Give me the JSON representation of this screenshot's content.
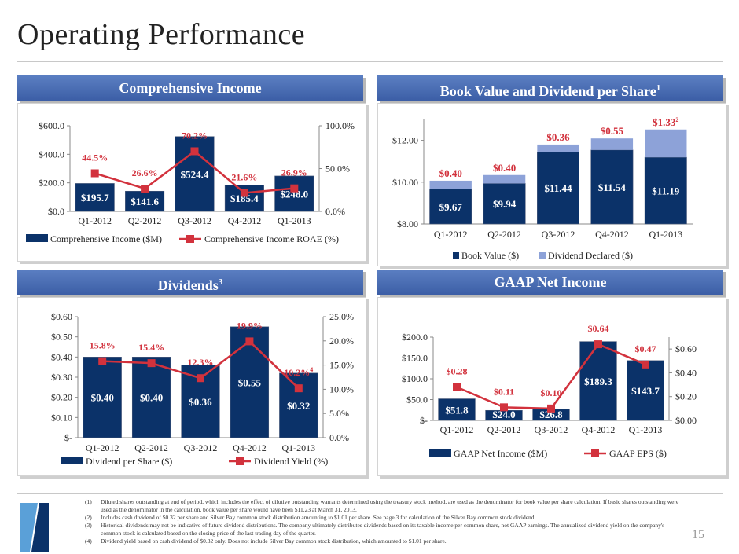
{
  "page": {
    "title": "Operating Performance",
    "page_number": "15"
  },
  "colors": {
    "navy": "#0b3269",
    "light_blue": "#8da2d8",
    "red": "#d2323d",
    "header_blue": "#4a6db3"
  },
  "panels": {
    "comprehensive": {
      "title": "Comprehensive Income"
    },
    "book_value": {
      "title": "Book Value and Dividend per Share",
      "title_sup": "1"
    },
    "dividends": {
      "title": "Dividends",
      "title_sup": "3"
    },
    "gaap": {
      "title": "GAAP Net Income"
    }
  },
  "chart_data": [
    {
      "id": "comprehensive",
      "type": "bar+line",
      "categories": [
        "Q1-2012",
        "Q2-2012",
        "Q3-2012",
        "Q4-2012",
        "Q1-2013"
      ],
      "series": [
        {
          "name": "Comprehensive Income ($M)",
          "kind": "bar",
          "axis": "left",
          "values": [
            195.7,
            141.6,
            524.4,
            185.4,
            248.0
          ],
          "labels": [
            "$195.7",
            "$141.6",
            "$524.4",
            "$185.4",
            "$248.0"
          ]
        },
        {
          "name": "Comprehensive Income ROAE (%)",
          "kind": "line",
          "axis": "right",
          "values": [
            44.5,
            26.6,
            70.2,
            21.6,
            26.9
          ],
          "labels": [
            "44.5%",
            "26.6%",
            "70.2%",
            "21.6%",
            "26.9%"
          ]
        }
      ],
      "left_axis": {
        "range": [
          0,
          600
        ],
        "ticks": [
          0,
          200,
          400,
          600
        ],
        "tick_labels": [
          "$0.0",
          "$200.0",
          "$400.0",
          "$600.0"
        ]
      },
      "right_axis": {
        "range": [
          0,
          100
        ],
        "ticks": [
          0,
          50,
          100
        ],
        "tick_labels": [
          "0.0%",
          "50.0%",
          "100.0%"
        ]
      },
      "grid": false,
      "legend": "bottom"
    },
    {
      "id": "book_value",
      "type": "stacked-bar",
      "categories": [
        "Q1-2012",
        "Q2-2012",
        "Q3-2012",
        "Q4-2012",
        "Q1-2013"
      ],
      "series": [
        {
          "name": "Book Value ($)",
          "kind": "bar",
          "axis": "left",
          "values": [
            9.67,
            9.94,
            11.44,
            11.54,
            11.19
          ],
          "labels": [
            "$9.67",
            "$9.94",
            "$11.44",
            "$11.54",
            "$11.19"
          ]
        },
        {
          "name": "Dividend Declared ($)",
          "kind": "stack",
          "axis": "left",
          "values": [
            0.4,
            0.4,
            0.36,
            0.55,
            1.33
          ],
          "labels": [
            "$0.40",
            "$0.40",
            "$0.36",
            "$0.55",
            "$1.33"
          ],
          "label_superscripts": [
            "",
            "",
            "",
            "",
            "2"
          ]
        }
      ],
      "left_axis": {
        "range": [
          8,
          13
        ],
        "ticks": [
          8,
          10,
          12
        ],
        "tick_labels": [
          "$8.00",
          "$10.00",
          "$12.00"
        ]
      },
      "grid": false,
      "legend": "bottom"
    },
    {
      "id": "dividends",
      "type": "bar+line",
      "categories": [
        "Q1-2012",
        "Q2-2012",
        "Q3-2012",
        "Q4-2012",
        "Q1-2013"
      ],
      "series": [
        {
          "name": "Dividend per Share ($)",
          "kind": "bar",
          "axis": "left",
          "values": [
            0.4,
            0.4,
            0.36,
            0.55,
            0.32
          ],
          "labels": [
            "$0.40",
            "$0.40",
            "$0.36",
            "$0.55",
            "$0.32"
          ]
        },
        {
          "name": "Dividend Yield (%)",
          "kind": "line",
          "axis": "right",
          "values": [
            15.8,
            15.4,
            12.3,
            19.9,
            10.2
          ],
          "labels": [
            "15.8%",
            "15.4%",
            "12.3%",
            "19.9%",
            "10.2%"
          ],
          "label_superscripts": [
            "",
            "",
            "",
            "",
            "4"
          ]
        }
      ],
      "left_axis": {
        "range": [
          0,
          0.6
        ],
        "ticks": [
          0,
          0.1,
          0.2,
          0.3,
          0.4,
          0.5,
          0.6
        ],
        "tick_labels": [
          "$-",
          "$0.10",
          "$0.20",
          "$0.30",
          "$0.40",
          "$0.50",
          "$0.60"
        ]
      },
      "right_axis": {
        "range": [
          0,
          25
        ],
        "ticks": [
          0,
          5,
          10,
          15,
          20,
          25
        ],
        "tick_labels": [
          "0.0%",
          "5.0%",
          "10.0%",
          "15.0%",
          "20.0%",
          "25.0%"
        ]
      },
      "grid": false,
      "legend": "bottom"
    },
    {
      "id": "gaap",
      "type": "bar+line",
      "categories": [
        "Q1-2012",
        "Q2-2012",
        "Q3-2012",
        "Q4-2012",
        "Q1-2013"
      ],
      "series": [
        {
          "name": "GAAP Net Income ($M)",
          "kind": "bar",
          "axis": "left",
          "values": [
            51.8,
            24.0,
            26.8,
            189.3,
            143.7
          ],
          "labels": [
            "$51.8",
            "$24.0",
            "$26.8",
            "$189.3",
            "$143.7"
          ]
        },
        {
          "name": "GAAP EPS ($)",
          "kind": "line",
          "axis": "right",
          "values": [
            0.28,
            0.11,
            0.1,
            0.64,
            0.47
          ],
          "labels": [
            "$0.28",
            "$0.11",
            "$0.10",
            "$0.64",
            "$0.47"
          ]
        }
      ],
      "left_axis": {
        "range": [
          0,
          200
        ],
        "ticks": [
          0,
          50,
          100,
          150,
          200
        ],
        "tick_labels": [
          "$-",
          "$50.0",
          "$100.0",
          "$150.0",
          "$200.0"
        ]
      },
      "right_axis": {
        "range": [
          0,
          0.7
        ],
        "ticks": [
          0,
          0.2,
          0.4,
          0.6
        ],
        "tick_labels": [
          "$0.00",
          "$0.20",
          "$0.40",
          "$0.60"
        ]
      },
      "grid": false,
      "legend": "bottom"
    }
  ],
  "footnotes": [
    {
      "num": "(1)",
      "text": "Diluted shares outstanding at end of period, which includes the effect of dilutive outstanding warrants determined using the treasury stock method, are used as the denominator for book value per share calculation. If basic shares outstanding were used as the denominator in the calculation, book value per share would have been $11.23 at March 31, 2013."
    },
    {
      "num": "(2)",
      "text": "Includes cash dividend of $0.32 per share and Silver Bay common stock distribution amounting to $1.01 per share. See page 3 for calculation of the Silver Bay common stock dividend."
    },
    {
      "num": "(3)",
      "text": "Historical dividends may not be indicative of future dividend distributions.  The company ultimately distributes dividends based on its taxable income per common share, not GAAP earnings. The annualized dividend yield on the company's common stock is calculated based on the closing price of the last trading day of the quarter."
    },
    {
      "num": "(4)",
      "text": "Dividend yield based on cash dividend of $0.32 only. Does not include Silver Bay common stock distribution, which amounted to $1.01 per share."
    }
  ]
}
